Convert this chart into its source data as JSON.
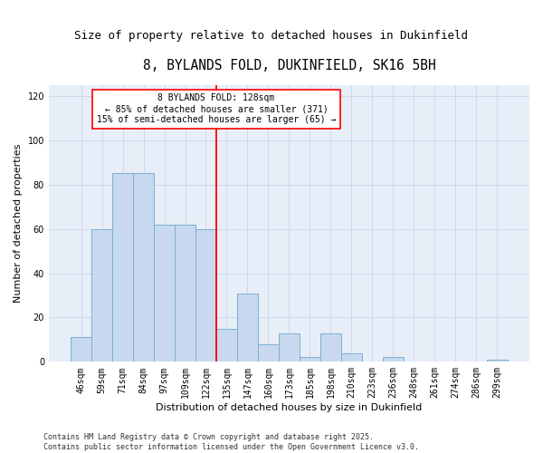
{
  "title": "8, BYLANDS FOLD, DUKINFIELD, SK16 5BH",
  "subtitle": "Size of property relative to detached houses in Dukinfield",
  "xlabel": "Distribution of detached houses by size in Dukinfield",
  "ylabel": "Number of detached properties",
  "categories": [
    "46sqm",
    "59sqm",
    "71sqm",
    "84sqm",
    "97sqm",
    "109sqm",
    "122sqm",
    "135sqm",
    "147sqm",
    "160sqm",
    "173sqm",
    "185sqm",
    "198sqm",
    "210sqm",
    "223sqm",
    "236sqm",
    "248sqm",
    "261sqm",
    "274sqm",
    "286sqm",
    "299sqm"
  ],
  "values": [
    11,
    60,
    85,
    85,
    62,
    62,
    60,
    15,
    31,
    8,
    13,
    2,
    13,
    4,
    0,
    2,
    0,
    0,
    0,
    0,
    1
  ],
  "bar_color": "#c8d9ef",
  "bar_edge_color": "#7bafd4",
  "grid_color": "#c8d4e8",
  "background_color": "#ffffff",
  "plot_bg_color": "#e8eef8",
  "property_label": "8 BYLANDS FOLD: 128sqm",
  "pct_smaller": 85,
  "count_smaller": 371,
  "pct_larger": 15,
  "count_larger": 65,
  "vline_x": 6.5,
  "footnote": "Contains HM Land Registry data © Crown copyright and database right 2025.\nContains public sector information licensed under the Open Government Licence v3.0.",
  "ylim": [
    0,
    125
  ],
  "yticks": [
    0,
    20,
    40,
    60,
    80,
    100,
    120
  ],
  "title_fontsize": 10.5,
  "subtitle_fontsize": 9,
  "axis_label_fontsize": 8,
  "tick_fontsize": 7,
  "annot_fontsize": 7,
  "footnote_fontsize": 6
}
